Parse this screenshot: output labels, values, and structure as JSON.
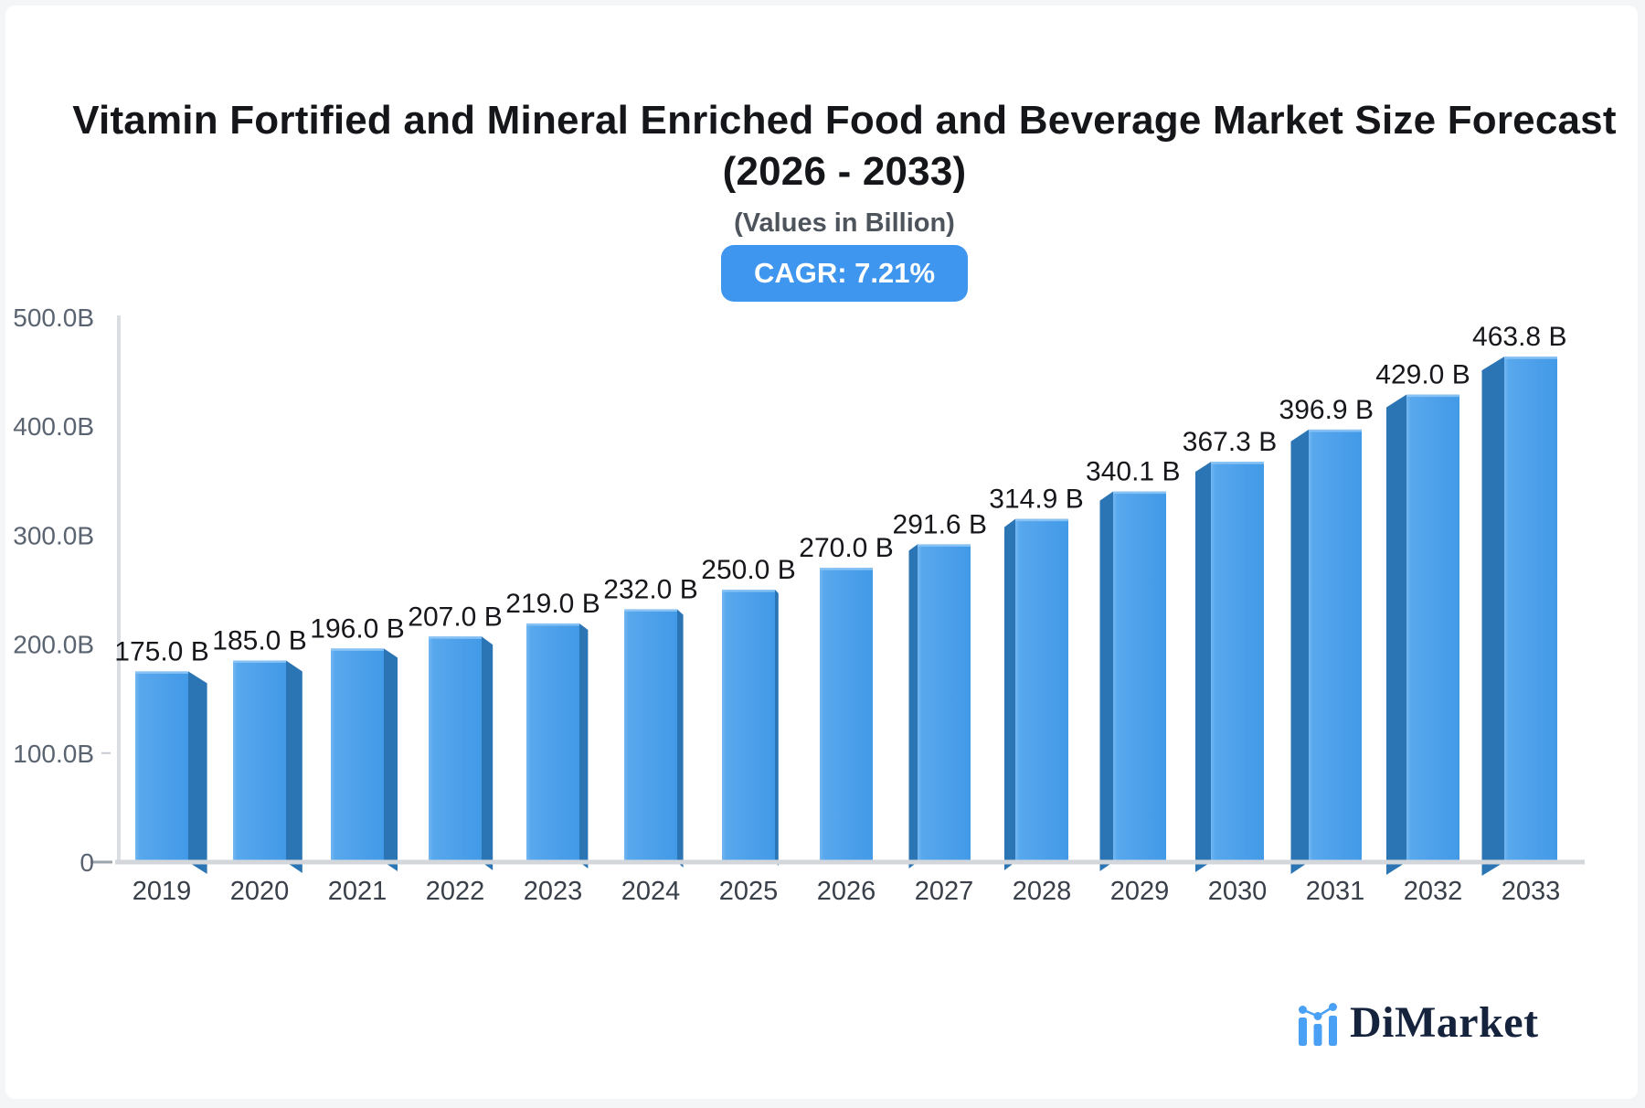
{
  "header": {
    "title_line1": "Vitamin Fortified and Mineral Enriched Food and Beverage Market Size Forecast",
    "title_line2": "(2026 - 2033)",
    "subtitle": "(Values in Billion)",
    "cagr_badge": "CAGR: 7.21%",
    "badge_color": "#3f96ee"
  },
  "logo": {
    "text": "DiMarket",
    "icon": "bar-chart-logo-icon",
    "icon_color": "#4aa0f5",
    "text_color": "#15233d"
  },
  "chart_data": {
    "type": "bar",
    "title": "Vitamin Fortified and Mineral Enriched Food and Beverage Market Size Forecast (2026 - 2033)",
    "subtitle": "(Values in Billion)",
    "annotation": "CAGR: 7.21%",
    "categories": [
      "2019",
      "2020",
      "2021",
      "2022",
      "2023",
      "2024",
      "2025",
      "2026",
      "2027",
      "2028",
      "2029",
      "2030",
      "2031",
      "2032",
      "2033"
    ],
    "values": [
      175.0,
      185.0,
      196.0,
      207.0,
      219.0,
      232.0,
      250.0,
      270.0,
      291.6,
      314.9,
      340.1,
      367.3,
      396.9,
      429.0,
      463.8
    ],
    "value_labels": [
      "175.0 B",
      "185.0 B",
      "196.0 B",
      "207.0 B",
      "219.0 B",
      "232.0 B",
      "250.0 B",
      "270.0 B",
      "291.6 B",
      "314.9 B",
      "340.1 B",
      "367.3 B",
      "396.9 B",
      "429.0 B",
      "463.8 B"
    ],
    "xlabel": "",
    "ylabel": "",
    "ylim": [
      0,
      500
    ],
    "grid": false,
    "legend": false,
    "y_axis_ticks": [
      {
        "label": "500.0B",
        "value": 500
      },
      {
        "label": "400.0B",
        "value": 400
      },
      {
        "label": "300.0B",
        "value": 300
      },
      {
        "label": "200.0B",
        "value": 200
      },
      {
        "label": "100.0B",
        "value": 100
      },
      {
        "label": "0",
        "value": 0
      }
    ],
    "colors": {
      "bar_front_light": "#74b7f2",
      "bar_front_mid": "#55a6ec",
      "bar_front_dark": "#429ae7",
      "bar_side": "#2c75b4",
      "value_label": "#15171b",
      "year_label": "#39404a",
      "axis_label": "#5a6370"
    }
  }
}
